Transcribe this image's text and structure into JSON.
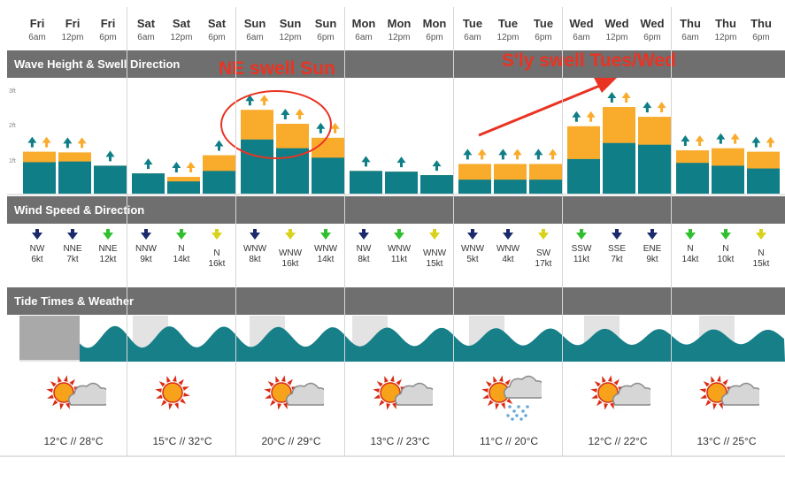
{
  "days": [
    {
      "day": "Fri",
      "times": [
        "6am",
        "12pm",
        "6pm"
      ]
    },
    {
      "day": "Sat",
      "times": [
        "6am",
        "12pm",
        "6pm"
      ]
    },
    {
      "day": "Sun",
      "times": [
        "6am",
        "12pm",
        "6pm"
      ]
    },
    {
      "day": "Mon",
      "times": [
        "6am",
        "12pm",
        "6pm"
      ]
    },
    {
      "day": "Tue",
      "times": [
        "6am",
        "12pm",
        "6pm"
      ]
    },
    {
      "day": "Wed",
      "times": [
        "6am",
        "12pm",
        "6pm"
      ]
    },
    {
      "day": "Thu",
      "times": [
        "6am",
        "12pm",
        "6pm"
      ]
    }
  ],
  "sections": {
    "wave": "Wave Height & Swell Direction",
    "wind": "Wind Speed & Direction",
    "tide": "Tide Times & Weather"
  },
  "wave_axis": [
    "3ft",
    "2ft",
    "1ft"
  ],
  "annotations": {
    "ne_swell": "NE swell Sun",
    "sly_swell": "S'ly swell Tues/Wed"
  },
  "colors": {
    "swell_primary": "#0f7e86",
    "swell_secondary": "#f9ab2c",
    "annotation": "#ea3323",
    "band": "#6f6f6f",
    "wind_light": "#1a2a6c",
    "wind_moderate": "#2fbf2f",
    "wind_fresh": "#d9d21a"
  },
  "chart_data": {
    "type": "bar",
    "categories": [
      "Fri 6am",
      "Fri 12pm",
      "Fri 6pm",
      "Sat 6am",
      "Sat 12pm",
      "Sat 6pm",
      "Sun 6am",
      "Sun 12pm",
      "Sun 6pm",
      "Mon 6am",
      "Mon 12pm",
      "Mon 6pm",
      "Tue 6am",
      "Tue 12pm",
      "Tue 6pm",
      "Wed 6am",
      "Wed 12pm",
      "Wed 6pm",
      "Thu 6am",
      "Thu 12pm",
      "Thu 6pm"
    ],
    "ylim": [
      0,
      3
    ],
    "y_ticks": [
      "1ft",
      "2ft",
      "3ft"
    ],
    "series": [
      {
        "values": [
          0.9,
          0.92,
          0.8,
          0.58,
          0.35,
          0.65,
          1.55,
          1.3,
          1.03,
          0.65,
          0.63,
          0.53,
          0.4,
          0.4,
          0.4,
          0.99,
          1.45,
          1.4,
          0.88,
          0.8,
          0.72
        ]
      },
      {
        "values": [
          1.2,
          1.18,
          0.8,
          0.58,
          0.48,
          1.1,
          2.4,
          2.0,
          1.6,
          0.65,
          0.63,
          0.53,
          0.85,
          0.85,
          0.85,
          1.93,
          2.48,
          2.2,
          1.24,
          1.3,
          1.2
        ]
      }
    ],
    "arrows": [
      [
        "teal",
        "orange"
      ],
      [
        "teal",
        "orange"
      ],
      [
        "teal"
      ],
      [
        "teal"
      ],
      [
        "teal",
        "orange"
      ],
      [
        "teal"
      ],
      [
        "teal",
        "orange"
      ],
      [
        "teal",
        "orange"
      ],
      [
        "teal",
        "orange"
      ],
      [
        "teal"
      ],
      [
        "teal"
      ],
      [
        "teal"
      ],
      [
        "teal",
        "orange"
      ],
      [
        "teal",
        "orange"
      ],
      [
        "teal",
        "orange"
      ],
      [
        "teal",
        "orange"
      ],
      [
        "teal",
        "orange"
      ],
      [
        "teal",
        "orange"
      ],
      [
        "teal",
        "orange"
      ],
      [
        "teal",
        "orange"
      ],
      [
        "teal",
        "orange"
      ]
    ]
  },
  "wind": [
    {
      "dir": "NW",
      "speed": "6kt",
      "level": "light"
    },
    {
      "dir": "NNE",
      "speed": "7kt",
      "level": "light"
    },
    {
      "dir": "NNE",
      "speed": "12kt",
      "level": "moderate"
    },
    {
      "dir": "NNW",
      "speed": "9kt",
      "level": "light"
    },
    {
      "dir": "N",
      "speed": "14kt",
      "level": "moderate"
    },
    {
      "dir": "N",
      "speed": "16kt",
      "level": "fresh"
    },
    {
      "dir": "WNW",
      "speed": "8kt",
      "level": "light"
    },
    {
      "dir": "WNW",
      "speed": "16kt",
      "level": "fresh"
    },
    {
      "dir": "WNW",
      "speed": "14kt",
      "level": "moderate"
    },
    {
      "dir": "NW",
      "speed": "8kt",
      "level": "light"
    },
    {
      "dir": "WNW",
      "speed": "11kt",
      "level": "moderate"
    },
    {
      "dir": "WNW",
      "speed": "15kt",
      "level": "fresh"
    },
    {
      "dir": "WNW",
      "speed": "5kt",
      "level": "light"
    },
    {
      "dir": "WNW",
      "speed": "4kt",
      "level": "light"
    },
    {
      "dir": "SW",
      "speed": "17kt",
      "level": "fresh"
    },
    {
      "dir": "SSW",
      "speed": "11kt",
      "level": "moderate"
    },
    {
      "dir": "SSE",
      "speed": "7kt",
      "level": "light"
    },
    {
      "dir": "ENE",
      "speed": "9kt",
      "level": "light"
    },
    {
      "dir": "N",
      "speed": "14kt",
      "level": "moderate"
    },
    {
      "dir": "N",
      "speed": "10kt",
      "level": "moderate"
    },
    {
      "dir": "N",
      "speed": "15kt",
      "level": "fresh"
    }
  ],
  "weather": [
    {
      "icon": "sun-cloud-icon",
      "min": "12°C",
      "sep": "//",
      "max": "28°C"
    },
    {
      "icon": "sun-icon",
      "min": "15°C",
      "sep": "//",
      "max": "32°C"
    },
    {
      "icon": "sun-cloud-icon",
      "min": "20°C",
      "sep": "//",
      "max": "29°C"
    },
    {
      "icon": "sun-cloud-icon",
      "min": "13°C",
      "sep": "//",
      "max": "23°C"
    },
    {
      "icon": "sun-rain-icon",
      "min": "11°C",
      "sep": "//",
      "max": "20°C"
    },
    {
      "icon": "sun-cloud-icon",
      "min": "12°C",
      "sep": "//",
      "max": "22°C"
    },
    {
      "icon": "sun-cloud-icon",
      "min": "13°C",
      "sep": "//",
      "max": "25°C"
    }
  ]
}
